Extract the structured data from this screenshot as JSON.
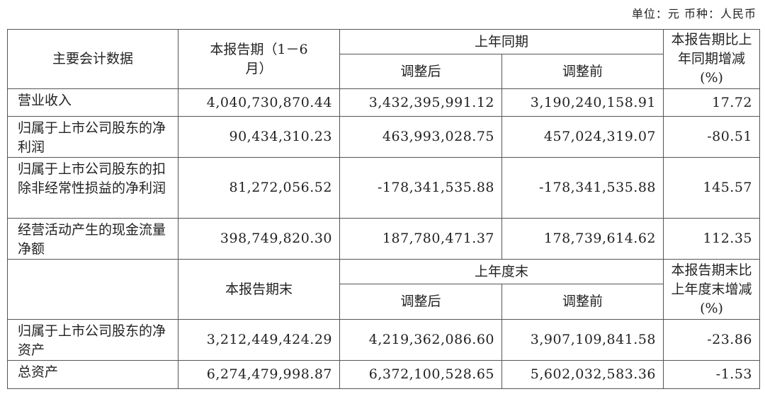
{
  "unit_note": "单位：元  币种：人民币",
  "header1": {
    "col_item": "主要会计数据",
    "col_current": "本报告期（1－6月）",
    "col_prior_group": "上年同期",
    "col_adjusted": "调整后",
    "col_before": "调整前",
    "col_change": "本报告期比上年同期增减(%)"
  },
  "rows1": [
    {
      "label": "营业收入",
      "current": "4,040,730,870.44",
      "adjusted": "3,432,395,991.12",
      "before": "3,190,240,158.91",
      "change": "17.72"
    },
    {
      "label": "归属于上市公司股东的净利润",
      "current": "90,434,310.23",
      "adjusted": "463,993,028.75",
      "before": "457,024,319.07",
      "change": "-80.51"
    },
    {
      "label": "归属于上市公司股东的扣除非经常性损益的净利润",
      "current": "81,272,056.52",
      "adjusted": "-178,341,535.88",
      "before": "-178,341,535.88",
      "change": "145.57"
    },
    {
      "label": "经营活动产生的现金流量净额",
      "current": "398,749,820.30",
      "adjusted": "187,780,471.37",
      "before": "178,739,614.62",
      "change": "112.35"
    }
  ],
  "header2": {
    "col_item": "",
    "col_current": "本报告期末",
    "col_prior_group": "上年度末",
    "col_adjusted": "调整后",
    "col_before": "调整前",
    "col_change": "本报告期末比上年度末增减(%)"
  },
  "rows2": [
    {
      "label": "归属于上市公司股东的净资产",
      "current": "3,212,449,424.29",
      "adjusted": "4,219,362,086.60",
      "before": "3,907,109,841.58",
      "change": "-23.86"
    },
    {
      "label": "总资产",
      "current": "6,274,479,998.87",
      "adjusted": "6,372,100,528.65",
      "before": "5,602,032,583.36",
      "change": "-1.53"
    }
  ]
}
